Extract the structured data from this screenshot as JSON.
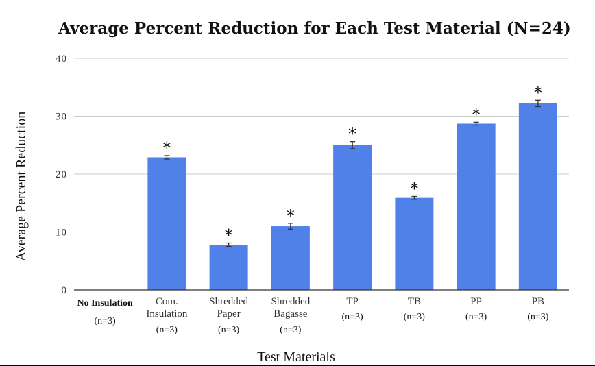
{
  "chart_data": {
    "type": "bar",
    "title": "Average Percent Reduction for Each Test Material (N=24)",
    "xlabel": "Test Materials",
    "ylabel": "Average Percent Reduction",
    "ylim": [
      0,
      40
    ],
    "yticks": [
      "0",
      "10",
      "20",
      "30",
      "40"
    ],
    "ytick_values": [
      0,
      10,
      20,
      30,
      40
    ],
    "grid": true,
    "categories": [
      {
        "lines": [
          "No Insulation"
        ],
        "n": "(n=3)",
        "bold": true
      },
      {
        "lines": [
          "Com.",
          "Insulation"
        ],
        "n": "(n=3)",
        "bold": false
      },
      {
        "lines": [
          "Shredded",
          "Paper"
        ],
        "n": "(n=3)",
        "bold": false
      },
      {
        "lines": [
          "Shredded",
          "Bagasse"
        ],
        "n": "(n=3)",
        "bold": false
      },
      {
        "lines": [
          "TP"
        ],
        "n": "(n=3)",
        "bold": false
      },
      {
        "lines": [
          "TB"
        ],
        "n": "(n=3)",
        "bold": false
      },
      {
        "lines": [
          "PP"
        ],
        "n": "(n=3)",
        "bold": false
      },
      {
        "lines": [
          "PB"
        ],
        "n": "(n=3)",
        "bold": false
      }
    ],
    "values": [
      0,
      22.9,
      7.8,
      11.0,
      25.0,
      15.9,
      28.7,
      32.2
    ],
    "errors": [
      0,
      0.3,
      0.3,
      0.5,
      0.6,
      0.25,
      0.25,
      0.55
    ],
    "significance": [
      "",
      "*",
      "*",
      "*",
      "*",
      "*",
      "*",
      "*"
    ],
    "bar_color": "#4f81e8"
  }
}
